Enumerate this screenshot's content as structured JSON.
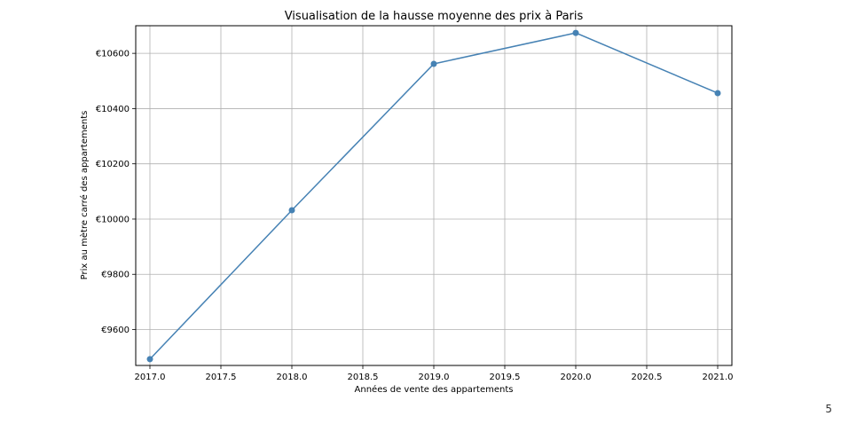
{
  "page_number": "5",
  "chart_data": {
    "type": "line",
    "title": "Visualisation de la hausse moyenne des prix à Paris",
    "xlabel": "Années de vente des appartements",
    "ylabel": "Prix au mètre carré des appartements",
    "x": [
      2017,
      2018,
      2019,
      2020,
      2021
    ],
    "series": [
      {
        "values": [
          9493,
          10032,
          10562,
          10674,
          10456
        ],
        "color": "#4682b4",
        "marker": "circle"
      }
    ],
    "xlim": [
      2016.9,
      2021.1
    ],
    "ylim": [
      9470,
      10700
    ],
    "xticks": [
      2017.0,
      2017.5,
      2018.0,
      2018.5,
      2019.0,
      2019.5,
      2020.0,
      2020.5,
      2021.0
    ],
    "xtick_labels": [
      "2017.0",
      "2017.5",
      "2018.0",
      "2018.5",
      "2019.0",
      "2019.5",
      "2020.0",
      "2020.5",
      "2021.0"
    ],
    "yticks": [
      9600,
      9800,
      10000,
      10200,
      10400,
      10600
    ],
    "ytick_labels": [
      "€9600",
      "€9800",
      "€10000",
      "€10200",
      "€10400",
      "€10600"
    ],
    "grid": true,
    "legend": false
  }
}
